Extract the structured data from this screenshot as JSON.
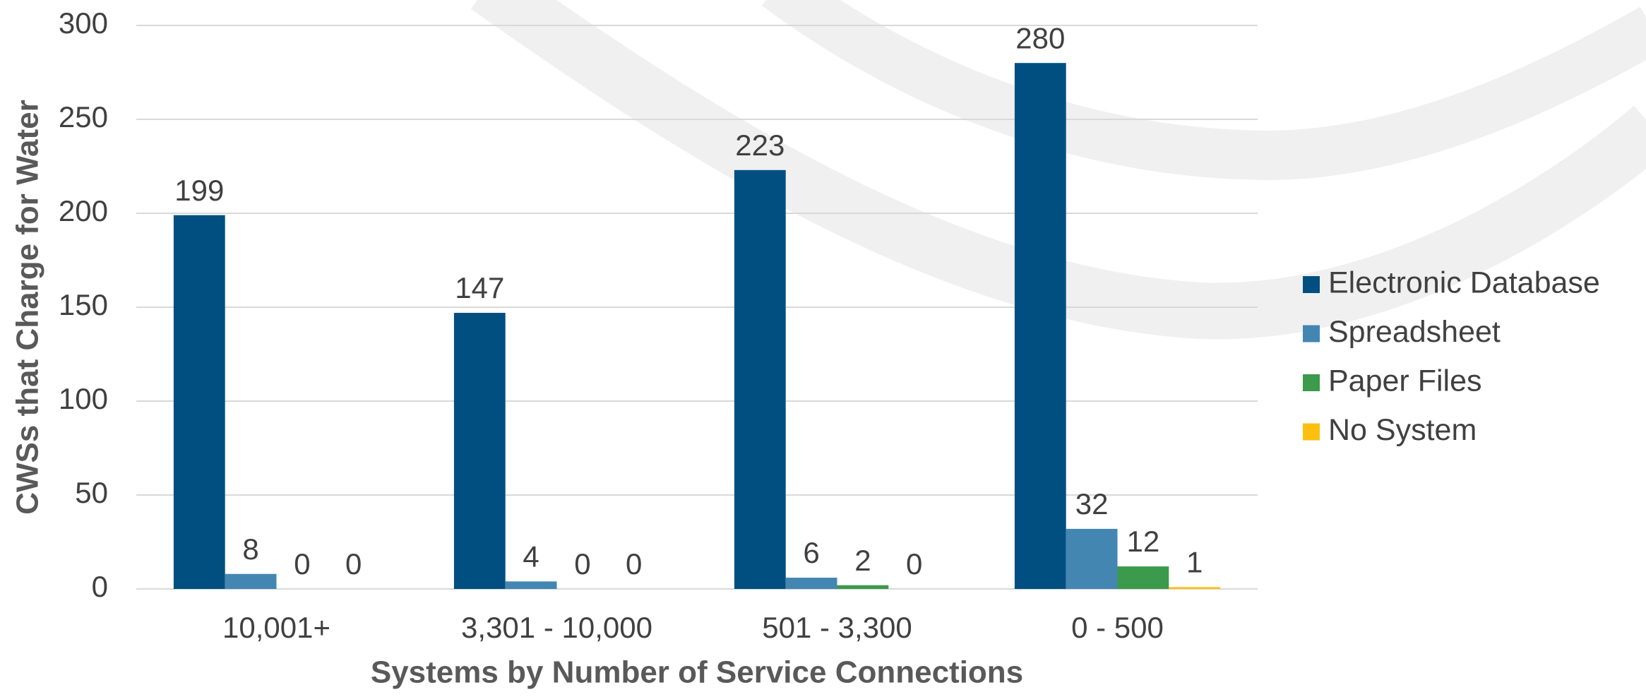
{
  "chart_data": {
    "type": "bar",
    "y_label": "CWSs that Charge for Water",
    "x_label": "Systems by Number of Service Connections",
    "categories": [
      "10,001+",
      "3,301 - 10,000",
      "501 - 3,300",
      "0 - 500"
    ],
    "series": [
      {
        "name": "Electronic Database",
        "color": "#004f80",
        "values": [
          199,
          147,
          223,
          280
        ]
      },
      {
        "name": "Spreadsheet",
        "color": "#4386b2",
        "values": [
          8,
          4,
          6,
          32
        ]
      },
      {
        "name": "Paper Files",
        "color": "#3b9a4b",
        "values": [
          0,
          0,
          2,
          12
        ]
      },
      {
        "name": "No System",
        "color": "#fdc010",
        "values": [
          0,
          0,
          0,
          1
        ]
      }
    ],
    "ylim": [
      0,
      300
    ],
    "yticks": [
      0,
      50,
      100,
      150,
      200,
      250,
      300
    ],
    "grid": true,
    "legend": "right"
  }
}
